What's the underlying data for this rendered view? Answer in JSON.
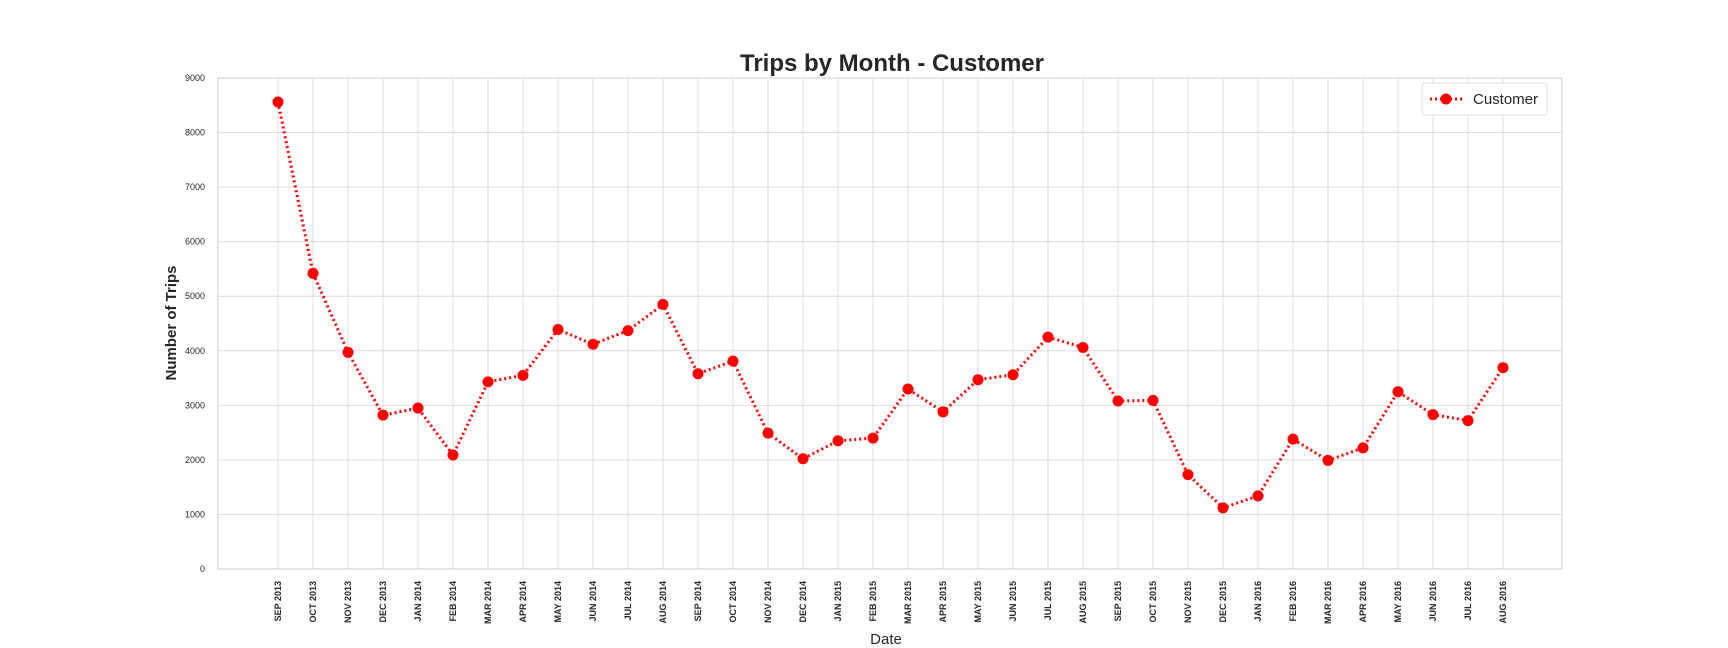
{
  "chart_data": {
    "type": "line",
    "title": "Trips by Month - Customer",
    "xlabel": "Date",
    "ylabel": "Number of Trips",
    "ylim": [
      0,
      9000
    ],
    "yticks": [
      "0",
      "1000",
      "2000",
      "3000",
      "4000",
      "5000",
      "6000",
      "7000",
      "8000",
      "9000"
    ],
    "grid": true,
    "legend_position": "top-right",
    "categories": [
      "SEP 2013",
      "OCT 2013",
      "NOV 2013",
      "DEC 2013",
      "JAN 2014",
      "FEB 2014",
      "MAR 2014",
      "APR 2014",
      "MAY 2014",
      "JUN 2014",
      "JUL 2014",
      "AUG 2014",
      "SEP 2014",
      "OCT 2014",
      "NOV 2014",
      "DEC 2014",
      "JAN 2015",
      "FEB 2015",
      "MAR 2015",
      "APR 2015",
      "MAY 2015",
      "JUN 2015",
      "JUL 2015",
      "AUG 2015",
      "SEP 2015",
      "OCT 2015",
      "NOV 2015",
      "DEC 2015",
      "JAN 2016",
      "FEB 2016",
      "MAR 2016",
      "APR 2016",
      "MAY 2016",
      "JUN 2016",
      "JUL 2016",
      "AUG 2016"
    ],
    "series": [
      {
        "name": "Customer",
        "color": "#ff0000",
        "line_style": "dotted",
        "marker": "circle",
        "values": [
          8560,
          5420,
          3970,
          2820,
          2950,
          2090,
          3430,
          3550,
          4390,
          4120,
          4370,
          4850,
          3580,
          3810,
          2490,
          2020,
          2350,
          2400,
          3300,
          2880,
          3470,
          3560,
          4250,
          4060,
          3080,
          3090,
          1730,
          1120,
          1340,
          2380,
          1990,
          2220,
          3250,
          2830,
          2720,
          3690
        ]
      }
    ]
  }
}
